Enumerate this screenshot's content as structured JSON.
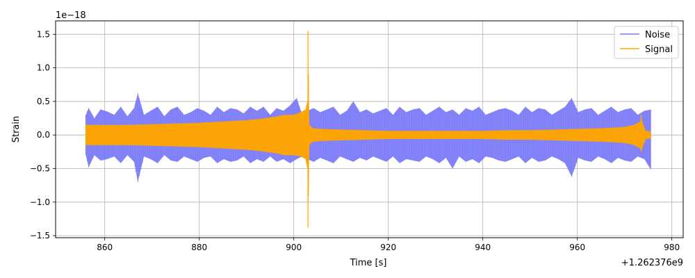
{
  "chart_data": {
    "type": "line",
    "title": "",
    "xlabel": "Time [s]",
    "ylabel": "Strain",
    "x_offset_label": "+1.262376e9",
    "y_scale_label": "1e−18",
    "xlim": [
      849.6,
      982.4
    ],
    "ylim": [
      -1.53,
      1.7
    ],
    "xticks": [
      860,
      880,
      900,
      920,
      940,
      960,
      980
    ],
    "xtick_labels": [
      "860",
      "880",
      "900",
      "920",
      "940",
      "960",
      "980"
    ],
    "yticks": [
      -1.5,
      -1.0,
      -0.5,
      0.0,
      0.5,
      1.0,
      1.5
    ],
    "ytick_labels": [
      "−1.5",
      "−1.0",
      "−0.5",
      "0.0",
      "0.5",
      "1.0",
      "1.5"
    ],
    "grid": true,
    "legend_position": "top-right",
    "series": [
      {
        "name": "Noise",
        "color": "#7b7bf7",
        "x": [
          856.0,
          856.6,
          857.8,
          859.1,
          860.5,
          862.0,
          863.4,
          864.8,
          866.2,
          867.0,
          868.3,
          869.7,
          871.2,
          872.6,
          874.0,
          875.4,
          876.8,
          878.2,
          879.6,
          881.0,
          882.4,
          883.8,
          885.2,
          886.6,
          888.0,
          889.4,
          890.8,
          892.2,
          893.6,
          895.0,
          896.4,
          897.8,
          899.2,
          900.6,
          901.8,
          902.9,
          904.2,
          905.6,
          907.0,
          908.4,
          909.8,
          911.2,
          912.6,
          914.0,
          915.4,
          916.8,
          918.2,
          919.6,
          921.0,
          922.4,
          923.8,
          925.2,
          926.6,
          928.0,
          929.4,
          930.8,
          932.2,
          933.6,
          935.0,
          936.4,
          937.8,
          939.2,
          940.6,
          942.0,
          943.4,
          944.8,
          946.2,
          947.6,
          949.0,
          950.4,
          951.8,
          953.2,
          954.6,
          956.0,
          957.4,
          958.8,
          960.2,
          961.6,
          963.0,
          964.4,
          965.8,
          967.2,
          968.6,
          970.0,
          971.4,
          972.8,
          974.2,
          975.6
        ],
        "upper": [
          0.3,
          0.4,
          0.25,
          0.38,
          0.35,
          0.3,
          0.42,
          0.28,
          0.4,
          0.62,
          0.3,
          0.36,
          0.42,
          0.28,
          0.38,
          0.42,
          0.3,
          0.34,
          0.4,
          0.36,
          0.3,
          0.42,
          0.34,
          0.4,
          0.38,
          0.32,
          0.42,
          0.36,
          0.42,
          0.3,
          0.4,
          0.36,
          0.44,
          0.55,
          0.3,
          0.36,
          0.4,
          0.34,
          0.38,
          0.42,
          0.3,
          0.36,
          0.5,
          0.34,
          0.38,
          0.32,
          0.36,
          0.4,
          0.3,
          0.42,
          0.34,
          0.38,
          0.4,
          0.3,
          0.36,
          0.42,
          0.34,
          0.38,
          0.3,
          0.4,
          0.36,
          0.42,
          0.3,
          0.34,
          0.38,
          0.4,
          0.36,
          0.3,
          0.42,
          0.34,
          0.4,
          0.38,
          0.3,
          0.36,
          0.42,
          0.55,
          0.34,
          0.38,
          0.4,
          0.3,
          0.36,
          0.42,
          0.34,
          0.38,
          0.4,
          0.3,
          0.36,
          0.38
        ],
        "lower": [
          -0.3,
          -0.48,
          -0.3,
          -0.38,
          -0.36,
          -0.32,
          -0.42,
          -0.3,
          -0.4,
          -0.7,
          -0.32,
          -0.36,
          -0.42,
          -0.3,
          -0.38,
          -0.4,
          -0.32,
          -0.36,
          -0.4,
          -0.34,
          -0.32,
          -0.42,
          -0.36,
          -0.4,
          -0.38,
          -0.32,
          -0.42,
          -0.36,
          -0.4,
          -0.32,
          -0.4,
          -0.36,
          -0.42,
          -0.36,
          -0.32,
          -0.36,
          -0.4,
          -0.34,
          -0.38,
          -0.42,
          -0.32,
          -0.36,
          -0.4,
          -0.34,
          -0.38,
          -0.32,
          -0.36,
          -0.4,
          -0.32,
          -0.42,
          -0.36,
          -0.38,
          -0.4,
          -0.32,
          -0.36,
          -0.42,
          -0.34,
          -0.5,
          -0.32,
          -0.4,
          -0.36,
          -0.42,
          -0.32,
          -0.34,
          -0.38,
          -0.4,
          -0.36,
          -0.32,
          -0.42,
          -0.34,
          -0.4,
          -0.38,
          -0.32,
          -0.36,
          -0.42,
          -0.62,
          -0.34,
          -0.38,
          -0.4,
          -0.32,
          -0.36,
          -0.42,
          -0.34,
          -0.38,
          -0.4,
          -0.32,
          -0.36,
          -0.52
        ]
      },
      {
        "name": "Signal",
        "color": "#ffa500",
        "x": [
          856.0,
          860.0,
          865.0,
          870.0,
          875.0,
          880.0,
          885.0,
          890.0,
          893.0,
          896.0,
          898.0,
          900.0,
          901.5,
          902.5,
          902.9,
          903.0,
          903.1,
          903.3,
          904.0,
          906.0,
          910.0,
          915.0,
          920.0,
          925.0,
          930.0,
          935.0,
          940.0,
          945.0,
          950.0,
          955.0,
          960.0,
          965.0,
          968.0,
          970.0,
          972.0,
          973.3,
          973.5,
          973.7,
          974.5,
          975.6
        ],
        "upper": [
          0.15,
          0.15,
          0.15,
          0.16,
          0.17,
          0.18,
          0.2,
          0.22,
          0.24,
          0.27,
          0.3,
          0.3,
          0.34,
          0.38,
          0.5,
          1.55,
          0.9,
          0.15,
          0.1,
          0.09,
          0.08,
          0.07,
          0.06,
          0.06,
          0.06,
          0.06,
          0.06,
          0.07,
          0.07,
          0.08,
          0.09,
          0.1,
          0.11,
          0.12,
          0.15,
          0.2,
          0.3,
          0.2,
          0.06,
          0.05
        ],
        "lower": [
          -0.15,
          -0.15,
          -0.15,
          -0.16,
          -0.17,
          -0.18,
          -0.2,
          -0.22,
          -0.24,
          -0.27,
          -0.3,
          -0.3,
          -0.32,
          -0.36,
          -0.5,
          -1.38,
          -0.9,
          -0.15,
          -0.1,
          -0.09,
          -0.08,
          -0.07,
          -0.06,
          -0.06,
          -0.06,
          -0.06,
          -0.06,
          -0.07,
          -0.07,
          -0.08,
          -0.09,
          -0.1,
          -0.11,
          -0.12,
          -0.15,
          -0.2,
          -0.25,
          -0.2,
          -0.06,
          -0.05
        ]
      }
    ]
  }
}
